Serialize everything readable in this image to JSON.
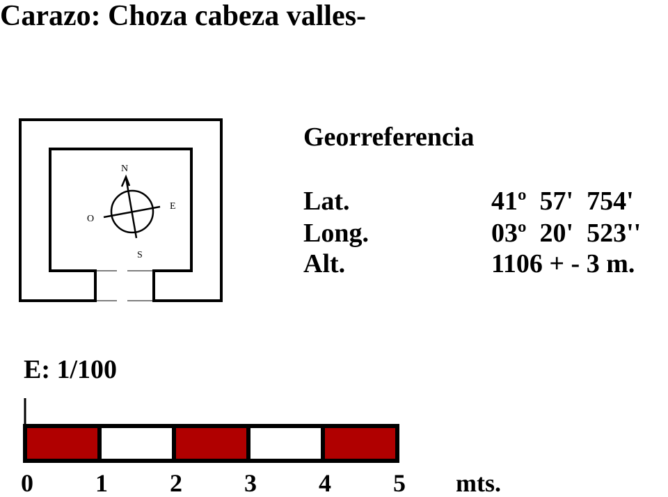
{
  "title": "Carazo: Choza cabeza valles-",
  "georef": {
    "heading": "Georreferencia",
    "rows": [
      {
        "label": "Lat.",
        "value": "41º  57'  754'"
      },
      {
        "label": "Long.",
        "value": "03º  20'  523''"
      },
      {
        "label": "Alt.",
        "value": "1106 + - 3 m."
      }
    ]
  },
  "compass": {
    "north": "N",
    "south": "S",
    "east": "E",
    "west": "O"
  },
  "scale": {
    "label": "E: 1/100",
    "ticks": [
      "0",
      "1",
      "2",
      "3",
      "4",
      "5"
    ],
    "unit": "mts.",
    "segment_colors": [
      "#b00000",
      "#ffffff",
      "#b00000",
      "#ffffff",
      "#b00000"
    ]
  }
}
